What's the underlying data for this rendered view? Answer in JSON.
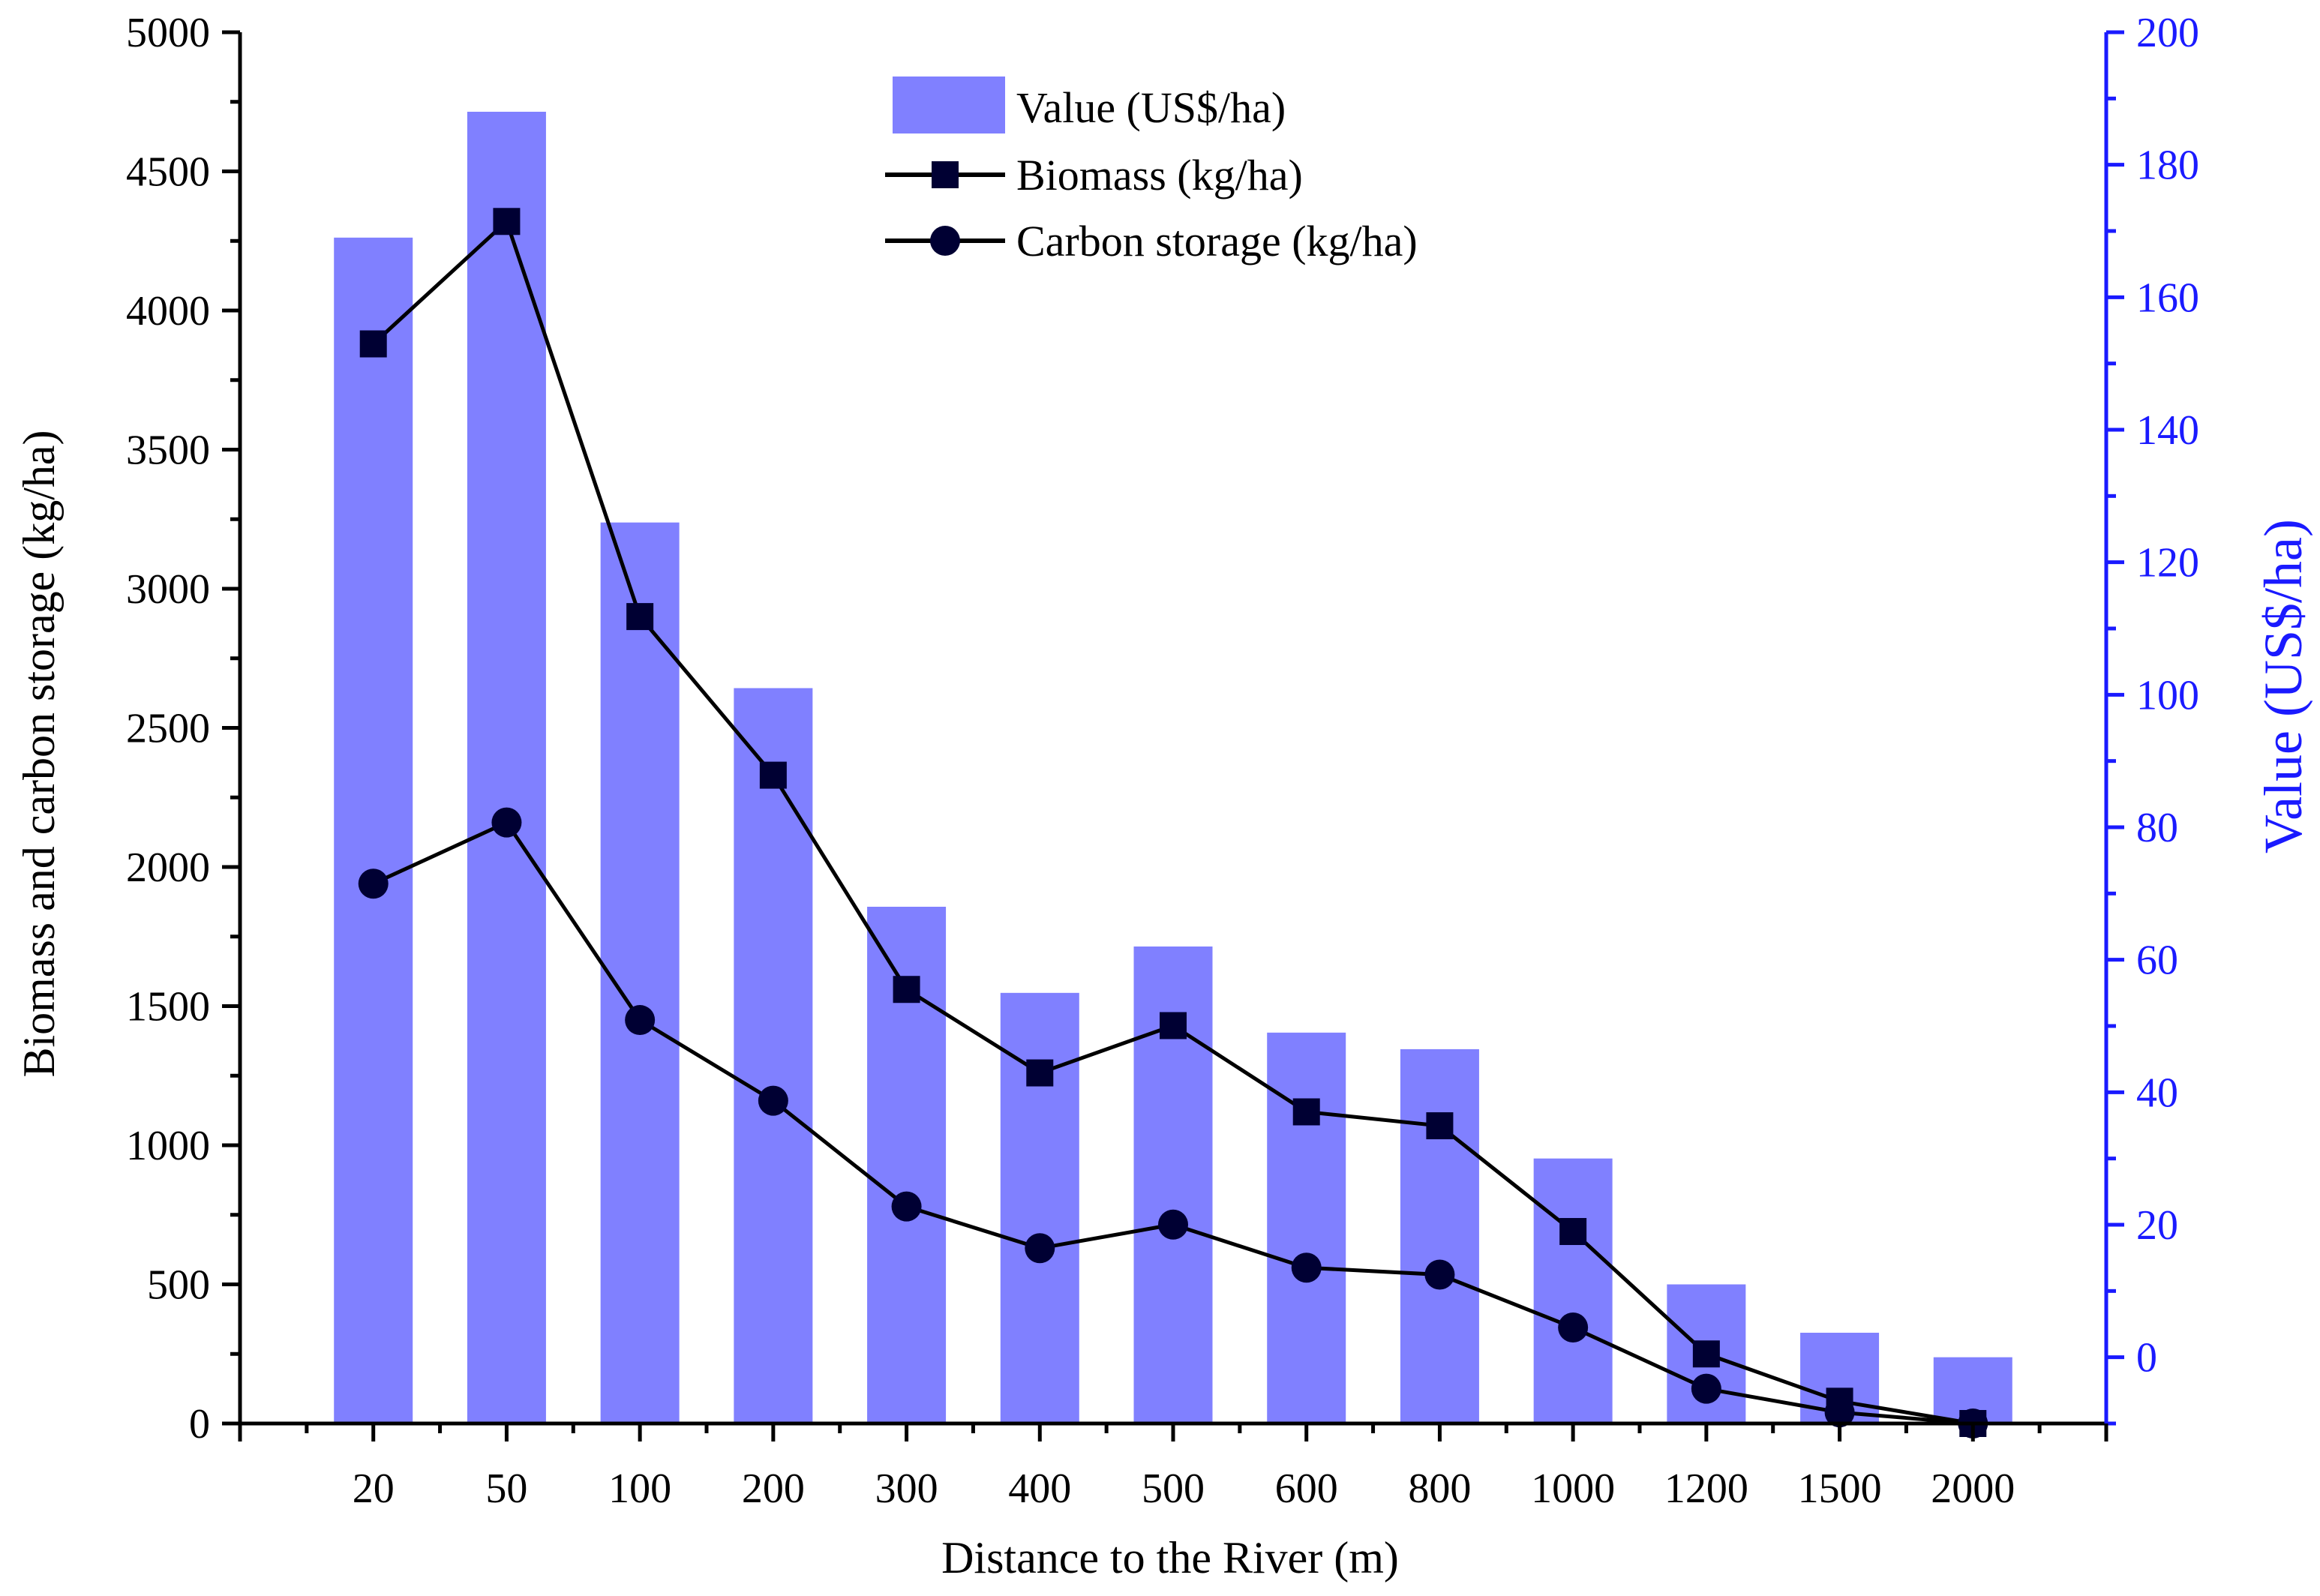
{
  "chart_data": {
    "type": "bar+line",
    "categories": [
      "20",
      "50",
      "100",
      "200",
      "300",
      "400",
      "500",
      "600",
      "800",
      "1000",
      "1200",
      "1500",
      "2000"
    ],
    "xlabel": "Distance to the River (m)",
    "ylabel_left": "Biomass and carbon storage (kg/ha)",
    "ylabel_right": "Value (US$/ha)",
    "ylim_left": [
      0,
      5000
    ],
    "ylim_right": [
      -10,
      200
    ],
    "yticks_left": [
      "0",
      "500",
      "1000",
      "1500",
      "2000",
      "2500",
      "3000",
      "3500",
      "4000",
      "4500",
      "5000"
    ],
    "yticks_right": [
      "0",
      "20",
      "40",
      "60",
      "80",
      "100",
      "120",
      "140",
      "160",
      "180",
      "200"
    ],
    "colors": {
      "bars": "#8080ff",
      "right_axis": "#1a1aff",
      "lines": "#000000",
      "markers": "#000033"
    },
    "series": [
      {
        "name": "Value (US$/ha)",
        "kind": "bar",
        "axis": "right",
        "values": [
          169,
          188,
          126,
          101,
          68,
          55,
          62,
          49,
          46.5,
          30,
          11,
          3.7,
          0
        ]
      },
      {
        "name": "Biomass (kg/ha)",
        "kind": "line",
        "marker": "square",
        "axis": "left",
        "values": [
          3880,
          4320,
          2900,
          2330,
          1560,
          1260,
          1430,
          1120,
          1070,
          690,
          250,
          80,
          0
        ]
      },
      {
        "name": "Carbon storage (kg/ha)",
        "kind": "line",
        "marker": "circle",
        "axis": "left",
        "values": [
          1940,
          2160,
          1450,
          1160,
          780,
          630,
          715,
          560,
          535,
          345,
          125,
          40,
          0
        ]
      }
    ],
    "legend": [
      "Value (US$/ha)",
      "Biomass (kg/ha)",
      "Carbon storage (kg/ha)"
    ],
    "legend_position": "top-center"
  }
}
